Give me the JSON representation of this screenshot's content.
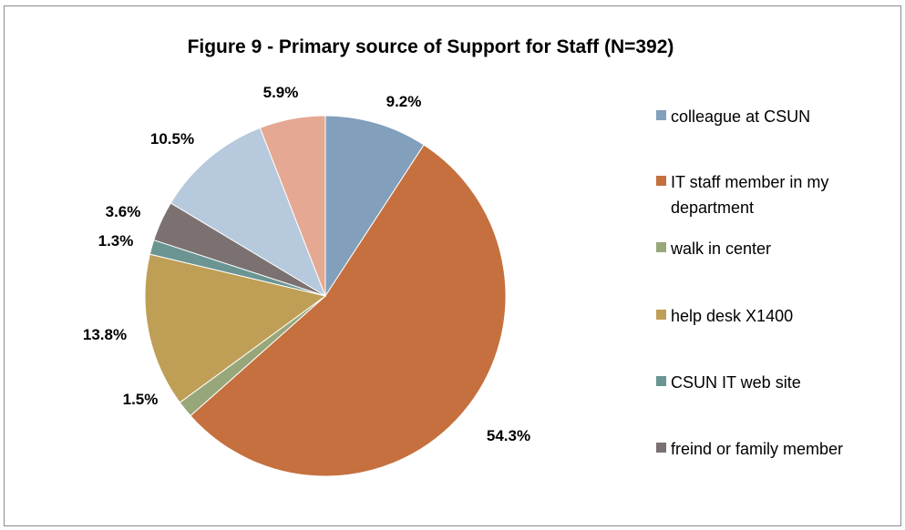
{
  "chart_data": {
    "type": "pie",
    "title": "Figure 9 - Primary source of Support for Staff (N=392)",
    "slices": [
      {
        "label": "colleague at CSUN",
        "value": 9.2,
        "value_label": "9.2%",
        "color": "#829fbc"
      },
      {
        "label": "IT staff member in my department",
        "value": 54.3,
        "value_label": "54.3%",
        "color": "#c5703e"
      },
      {
        "label": "walk in center",
        "value": 1.5,
        "value_label": "1.5%",
        "color": "#98a77a"
      },
      {
        "label": "help desk X1400",
        "value": 13.8,
        "value_label": "13.8%",
        "color": "#bf9f56"
      },
      {
        "label": "CSUN IT web site",
        "value": 1.3,
        "value_label": "1.3%",
        "color": "#6a9592"
      },
      {
        "label": "freind or family member",
        "value": 3.6,
        "value_label": "3.6%",
        "color": "#7b7171"
      },
      {
        "label": "",
        "value": 10.5,
        "value_label": "10.5%",
        "color": "#b6c9dd"
      },
      {
        "label": "",
        "value": 5.9,
        "value_label": "5.9%",
        "color": "#e5a892"
      }
    ],
    "legend_placement": "right"
  }
}
